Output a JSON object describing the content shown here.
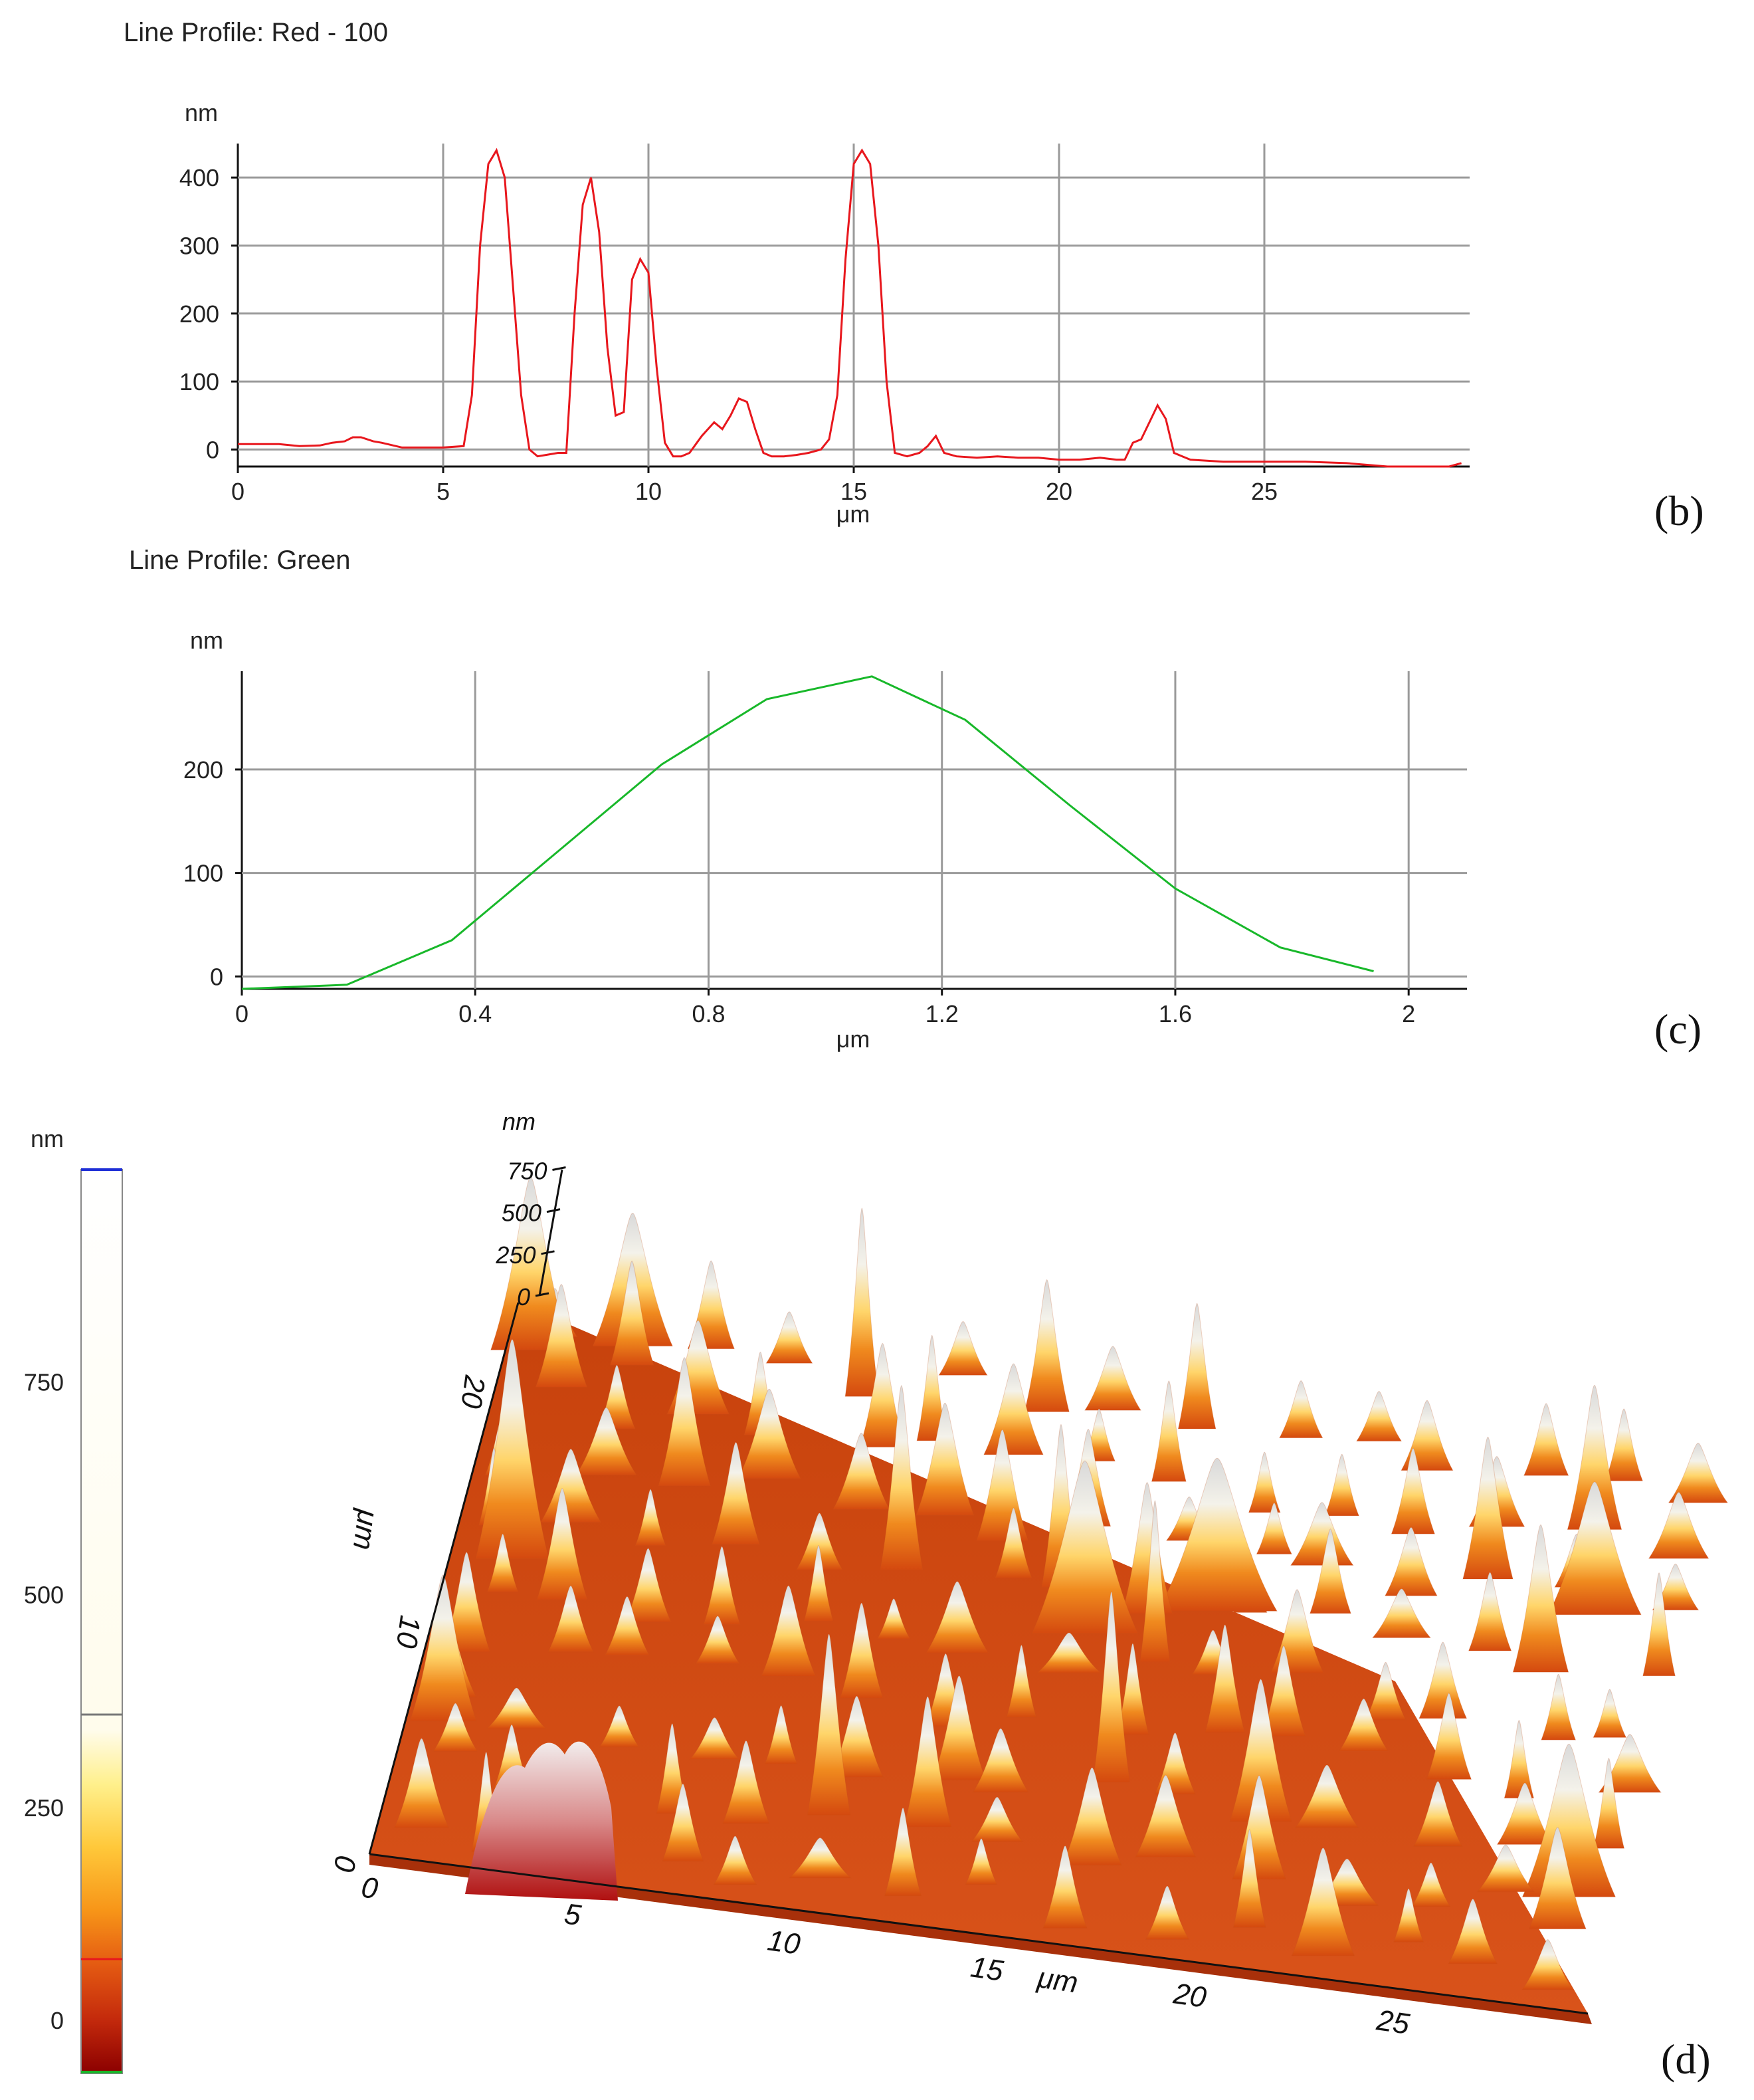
{
  "chart_data": [
    {
      "type": "line",
      "panel": "(b)",
      "title": "Line Profile: Red  -  100",
      "ylabel": "nm",
      "xlabel": "μm",
      "xlim": [
        0,
        30
      ],
      "ylim": [
        -25,
        450
      ],
      "xticks": [
        0,
        5,
        10,
        15,
        20,
        25
      ],
      "yticks": [
        0,
        100,
        200,
        300,
        400
      ],
      "grid": true,
      "color": "#e8171d",
      "series": [
        {
          "name": "Red",
          "x": [
            0,
            1,
            1.5,
            2,
            2.3,
            2.6,
            2.8,
            3.0,
            3.3,
            3.5,
            4,
            5,
            5.5,
            5.7,
            5.9,
            6.1,
            6.3,
            6.5,
            6.7,
            6.9,
            7.1,
            7.3,
            7.5,
            7.8,
            8.0,
            8.2,
            8.4,
            8.6,
            8.8,
            9.0,
            9.2,
            9.4,
            9.6,
            9.8,
            10.0,
            10.2,
            10.4,
            10.6,
            10.8,
            11.0,
            11.3,
            11.6,
            11.8,
            12.0,
            12.2,
            12.4,
            12.6,
            12.8,
            13.0,
            13.3,
            13.6,
            13.9,
            14.2,
            14.4,
            14.6,
            14.8,
            15.0,
            15.2,
            15.4,
            15.6,
            15.8,
            16.0,
            16.3,
            16.6,
            16.8,
            17.0,
            17.2,
            17.5,
            18,
            18.5,
            19,
            19.5,
            20,
            20.5,
            21,
            21.4,
            21.6,
            21.8,
            22.0,
            22.2,
            22.4,
            22.6,
            22.8,
            23.2,
            24,
            25,
            26,
            27,
            28,
            29,
            29.5,
            29.8
          ],
          "values": [
            8,
            8,
            5,
            6,
            10,
            12,
            18,
            18,
            12,
            10,
            3,
            3,
            5,
            80,
            300,
            420,
            440,
            400,
            240,
            80,
            0,
            -10,
            -8,
            -5,
            -5,
            200,
            360,
            400,
            320,
            150,
            50,
            55,
            250,
            280,
            260,
            120,
            10,
            -10,
            -10,
            -5,
            20,
            40,
            30,
            50,
            75,
            70,
            30,
            -5,
            -10,
            -10,
            -8,
            -5,
            0,
            15,
            80,
            280,
            420,
            440,
            420,
            300,
            100,
            -5,
            -10,
            -5,
            5,
            20,
            -5,
            -10,
            -12,
            -10,
            -12,
            -12,
            -15,
            -15,
            -12,
            -15,
            -15,
            10,
            15,
            40,
            65,
            45,
            -5,
            -15,
            -18,
            -18,
            -18,
            -20,
            -25,
            -25,
            -25,
            -20
          ]
        }
      ],
      "panel_label": "(b)"
    },
    {
      "type": "line",
      "panel": "(c)",
      "title": "Line Profile: Green",
      "ylabel": "nm",
      "xlabel": "μm",
      "xlim": [
        0,
        2.1
      ],
      "ylim": [
        -12,
        295
      ],
      "xticks": [
        0,
        0.4,
        0.8,
        1.2,
        1.6,
        2
      ],
      "xtick_labels": [
        "0",
        "0.4",
        "0.8",
        "1.2",
        "1.6",
        "2"
      ],
      "yticks": [
        0,
        100,
        200
      ],
      "grid": true,
      "color": "#18b82a",
      "series": [
        {
          "name": "Green",
          "x": [
            0,
            0.18,
            0.36,
            0.54,
            0.72,
            0.9,
            1.08,
            1.24,
            1.42,
            1.6,
            1.78,
            1.94
          ],
          "values": [
            -12,
            -8,
            35,
            120,
            205,
            268,
            290,
            248,
            165,
            85,
            28,
            5
          ]
        }
      ],
      "panel_label": "(c)"
    },
    {
      "type": "heatmap",
      "panel": "(d)",
      "title": "",
      "colorbar": {
        "label": "nm",
        "ticks": [
          0,
          250,
          500,
          750
        ],
        "range": [
          -60,
          1000
        ],
        "scale_colors": [
          "#8b0000",
          "#d23a10",
          "#f07a14",
          "#ffb21e",
          "#ffe66e",
          "#fffce8",
          "#ffffff"
        ]
      },
      "surface": {
        "x_label": "μm",
        "y_label": "μm",
        "z_label": "nm",
        "x_ticks": [
          0,
          5,
          10,
          15,
          20,
          25
        ],
        "y_ticks": [
          0,
          10,
          20
        ],
        "z_ticks": [
          0,
          250,
          500,
          750
        ],
        "base_color": "#d4490f",
        "peak_color": "#e8e8e8"
      },
      "panel_label": "(d)"
    }
  ]
}
